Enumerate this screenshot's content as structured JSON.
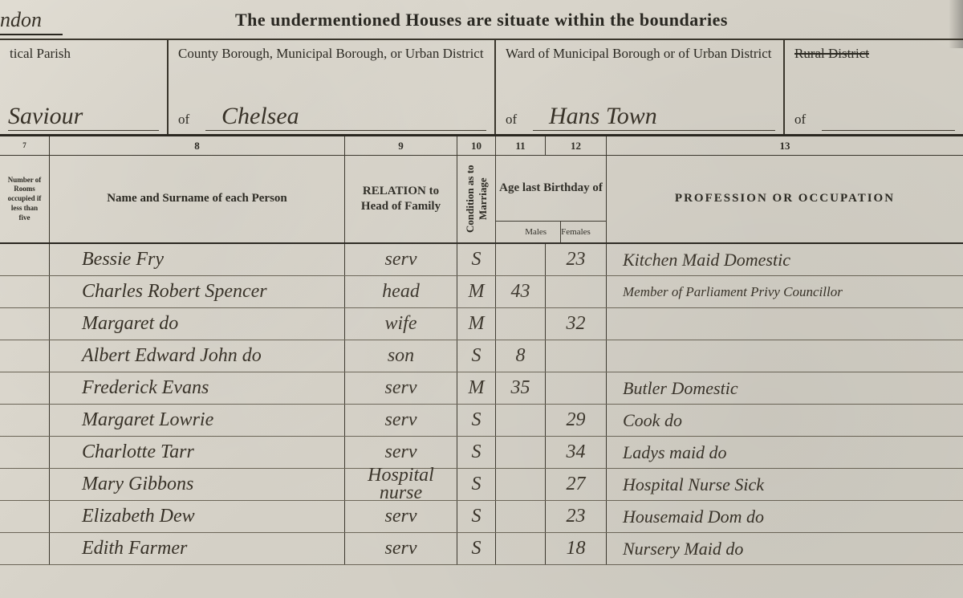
{
  "header": {
    "title": "The undermentioned Houses are situate within the boundaries",
    "top_left_script": "ndon"
  },
  "regions": {
    "parish": {
      "label": "tical Parish",
      "of": "",
      "value": "Saviour"
    },
    "borough": {
      "label": "County Borough, Municipal Borough, or Urban District",
      "of": "of",
      "value": "Chelsea"
    },
    "ward": {
      "label": "Ward of Municipal Borough or of Urban District",
      "of": "of",
      "value": "Hans Town"
    },
    "rural": {
      "label": "Rural District",
      "of": "of",
      "value": ""
    }
  },
  "colnums": {
    "c7": "7",
    "c8": "8",
    "c9": "9",
    "c10": "10",
    "c11": "11",
    "c12": "12",
    "c13": "13"
  },
  "headers": {
    "rooms": "Number of Rooms occupied if less than five",
    "name": "Name and Surname of each Person",
    "relation": "RELATION to Head of Family",
    "condition": "Condition as to Marriage",
    "age": "Age last Birthday of",
    "males": "Males",
    "females": "Females",
    "profession": "PROFESSION OR OCCUPATION"
  },
  "rows": [
    {
      "name": "Bessie Fry",
      "relation": "serv",
      "condition": "S",
      "age_m": "",
      "age_f": "23",
      "profession": "Kitchen Maid  Domestic"
    },
    {
      "name": "Charles Robert Spencer",
      "relation": "head",
      "condition": "M",
      "age_m": "43",
      "age_f": "",
      "profession": "Member of Parliament Privy Councillor"
    },
    {
      "name": "Margaret        do",
      "relation": "wife",
      "condition": "M",
      "age_m": "",
      "age_f": "32",
      "profession": ""
    },
    {
      "name": "Albert Edward John  do",
      "relation": "son",
      "condition": "S",
      "age_m": "8",
      "age_f": "",
      "profession": ""
    },
    {
      "name": "Frederick Evans",
      "relation": "serv",
      "condition": "M",
      "age_m": "35",
      "age_f": "",
      "profession": "Butler       Domestic"
    },
    {
      "name": "Margaret Lowrie",
      "relation": "serv",
      "condition": "S",
      "age_m": "",
      "age_f": "29",
      "profession": "Cook            do"
    },
    {
      "name": "Charlotte Tarr",
      "relation": "serv",
      "condition": "S",
      "age_m": "",
      "age_f": "34",
      "profession": "Ladys maid       do"
    },
    {
      "name": "Mary Gibbons",
      "relation": "Hospital nurse",
      "condition": "S",
      "age_m": "",
      "age_f": "27",
      "profession": "Hospital Nurse Sick"
    },
    {
      "name": "Elizabeth Dew",
      "relation": "serv",
      "condition": "S",
      "age_m": "",
      "age_f": "23",
      "profession": "Housemaid Dom do"
    },
    {
      "name": "Edith Farmer",
      "relation": "serv",
      "condition": "S",
      "age_m": "",
      "age_f": "18",
      "profession": "Nursery Maid   do"
    }
  ],
  "style": {
    "background": "#d8d5cd",
    "ink": "#2f2a20",
    "rule": "#3a362c",
    "script_font": "Brush Script MT",
    "print_font": "Georgia"
  }
}
